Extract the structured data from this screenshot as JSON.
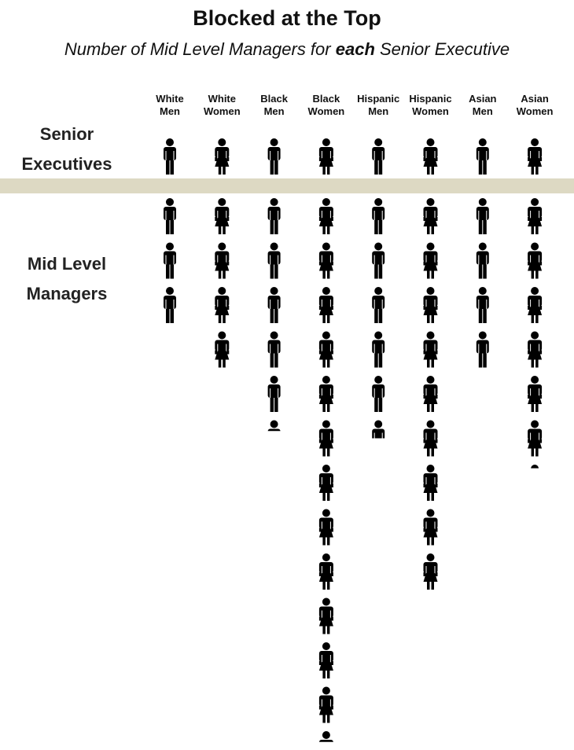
{
  "chart_data": {
    "type": "pictogram",
    "title": "Blocked at the Top",
    "subtitle": [
      "Number of Mid Level Managers for ",
      "each",
      " Senior Executive"
    ],
    "categories": [
      "White Men",
      "White Women",
      "Black Men",
      "Black Women",
      "Hispanic Men",
      "Hispanic Women",
      "Asian Men",
      "Asian Women"
    ],
    "icons": [
      "man",
      "woman",
      "man",
      "woman",
      "man",
      "woman",
      "man",
      "woman"
    ],
    "color": "#000000",
    "band_color": "#ddd9c3",
    "series": [
      {
        "name": "Senior Executives",
        "values": [
          1,
          1,
          1,
          1,
          1,
          1,
          1,
          1
        ]
      },
      {
        "name": "Mid Level Managers",
        "values": [
          3,
          4,
          5.3,
          12.3,
          5.5,
          9,
          4,
          6.1
        ]
      }
    ]
  }
}
